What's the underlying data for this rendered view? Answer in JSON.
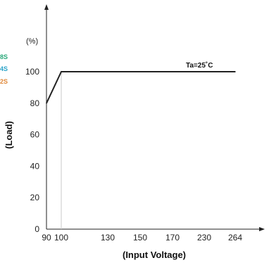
{
  "chart_data": {
    "type": "line",
    "xlabel": "(Input Voltage)",
    "ylabel": "(Load)",
    "unit": "(%)",
    "x_ticks": [
      90,
      100,
      130,
      150,
      170,
      230,
      264
    ],
    "y_ticks": [
      0,
      20,
      40,
      60,
      80,
      100
    ],
    "series": [
      {
        "x": [
          90,
          100,
          264
        ],
        "y": [
          80,
          100,
          100
        ],
        "color": "#222222"
      }
    ],
    "annotation": "Ta=25˚C",
    "legend_fragments": [
      {
        "text": "8S",
        "color": "#2aa87a"
      },
      {
        "text": "4S",
        "color": "#2aa3c8"
      },
      {
        "text": "2S",
        "color": "#e0893a"
      }
    ],
    "grid": false
  }
}
